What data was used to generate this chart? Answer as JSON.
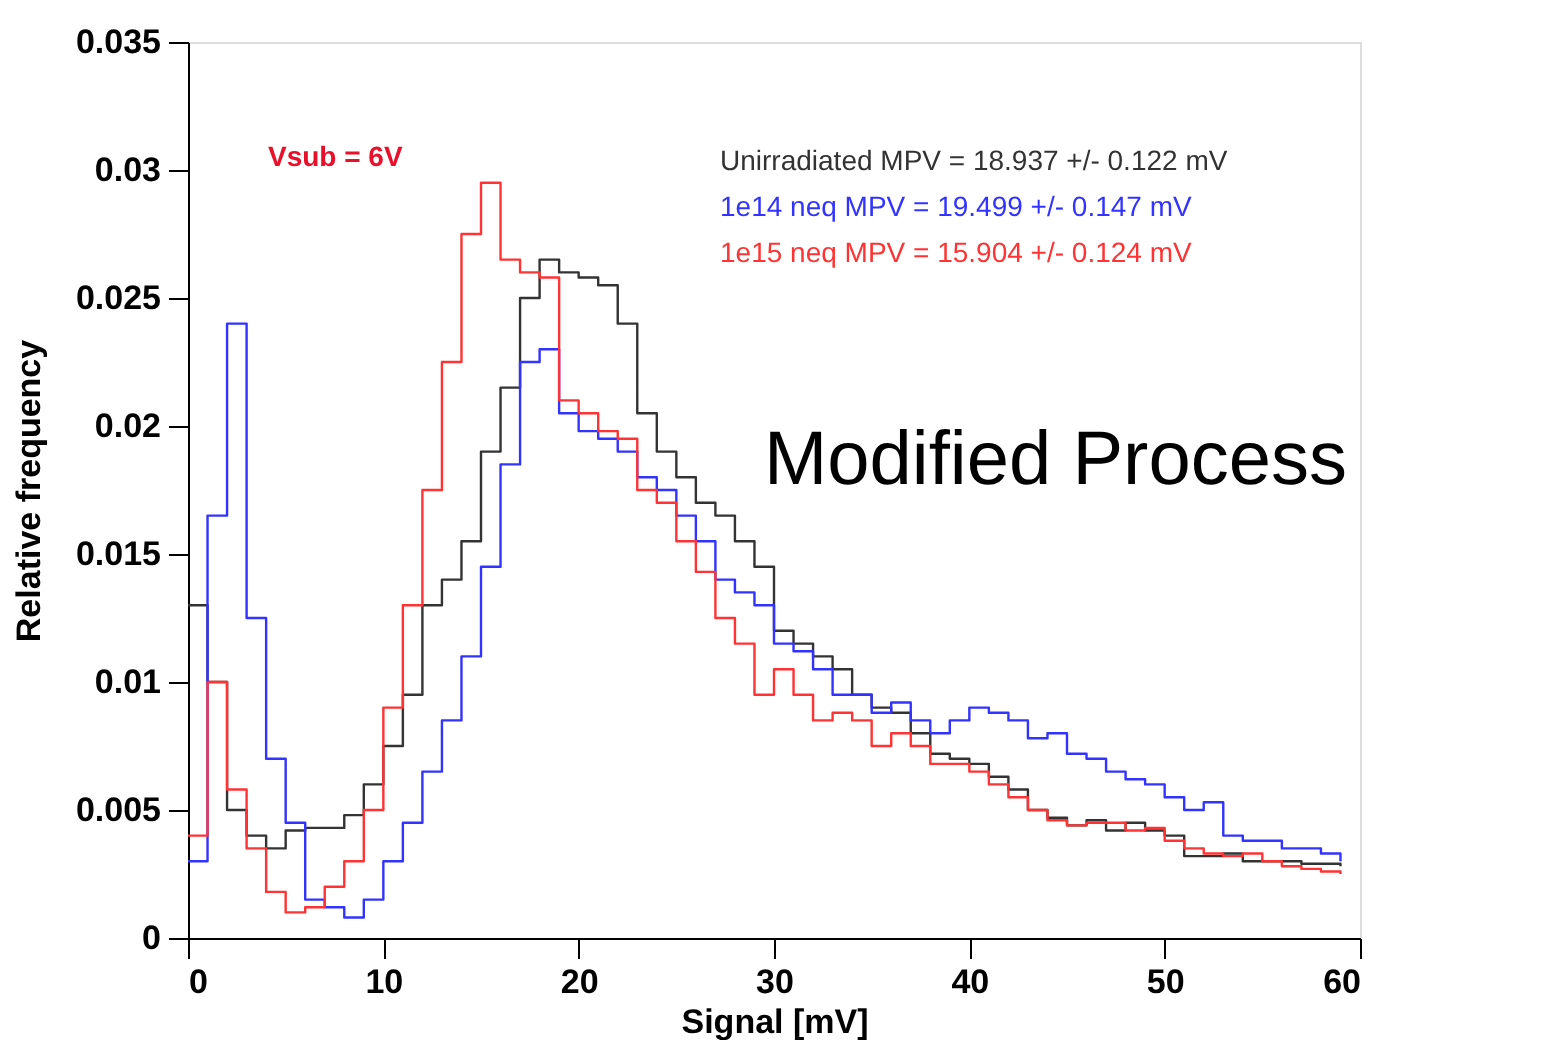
{
  "chart_data": {
    "type": "step",
    "xlabel": "Signal [mV]",
    "ylabel": "Relative frequency",
    "x": [
      0,
      1,
      2,
      3,
      4,
      5,
      6,
      7,
      8,
      9,
      10,
      11,
      12,
      13,
      14,
      15,
      16,
      17,
      18,
      19,
      20,
      21,
      22,
      23,
      24,
      25,
      26,
      27,
      28,
      29,
      30,
      31,
      32,
      33,
      34,
      35,
      36,
      37,
      38,
      39,
      40,
      41,
      42,
      43,
      44,
      45,
      46,
      47,
      48,
      49,
      50,
      51,
      52,
      53,
      54,
      55,
      56,
      57,
      58,
      59
    ],
    "series": [
      {
        "name": "Unirradiated  MPV = 18.937 +/- 0.122 mV",
        "color": "#333333",
        "values": [
          0.013,
          0.01,
          0.005,
          0.004,
          0.0035,
          0.0042,
          0.0043,
          0.0043,
          0.0048,
          0.006,
          0.0075,
          0.0095,
          0.013,
          0.014,
          0.0155,
          0.019,
          0.0215,
          0.025,
          0.0265,
          0.026,
          0.0258,
          0.0255,
          0.024,
          0.0205,
          0.019,
          0.018,
          0.017,
          0.0165,
          0.0155,
          0.0145,
          0.012,
          0.0115,
          0.011,
          0.0105,
          0.0095,
          0.009,
          0.0088,
          0.008,
          0.0072,
          0.007,
          0.0068,
          0.0063,
          0.0058,
          0.005,
          0.0047,
          0.0044,
          0.0046,
          0.0042,
          0.0045,
          0.0042,
          0.004,
          0.0032,
          0.0032,
          0.0033,
          0.003,
          0.003,
          0.003,
          0.0029,
          0.0029,
          0.0028
        ]
      },
      {
        "name": "1e14 neq  MPV = 19.499 +/- 0.147 mV",
        "color": "#3333ff",
        "values": [
          0.003,
          0.0165,
          0.024,
          0.0125,
          0.007,
          0.0045,
          0.0015,
          0.0012,
          0.0008,
          0.0015,
          0.003,
          0.0045,
          0.0065,
          0.0085,
          0.011,
          0.0145,
          0.0185,
          0.0225,
          0.023,
          0.0205,
          0.0198,
          0.0195,
          0.019,
          0.018,
          0.0175,
          0.0165,
          0.0155,
          0.014,
          0.0135,
          0.013,
          0.0115,
          0.0112,
          0.0105,
          0.0095,
          0.0095,
          0.0088,
          0.0092,
          0.0085,
          0.008,
          0.0085,
          0.009,
          0.0088,
          0.0085,
          0.0078,
          0.008,
          0.0072,
          0.007,
          0.0065,
          0.0062,
          0.006,
          0.0055,
          0.005,
          0.0053,
          0.004,
          0.0038,
          0.0038,
          0.0035,
          0.0035,
          0.0033,
          0.003
        ]
      },
      {
        "name": "1e15 neq  MPV = 15.904 +/- 0.124 mV",
        "color": "#ff3333",
        "values": [
          0.004,
          0.01,
          0.0058,
          0.0035,
          0.0018,
          0.001,
          0.0012,
          0.002,
          0.003,
          0.005,
          0.009,
          0.013,
          0.0175,
          0.0225,
          0.0275,
          0.0295,
          0.0265,
          0.026,
          0.0258,
          0.021,
          0.0205,
          0.0198,
          0.0195,
          0.0175,
          0.017,
          0.0155,
          0.0143,
          0.0125,
          0.0115,
          0.0095,
          0.0105,
          0.0095,
          0.0085,
          0.0088,
          0.0085,
          0.0075,
          0.008,
          0.0075,
          0.0068,
          0.0068,
          0.0065,
          0.006,
          0.0055,
          0.005,
          0.0046,
          0.0044,
          0.0045,
          0.0045,
          0.0042,
          0.0043,
          0.0038,
          0.0035,
          0.0033,
          0.0032,
          0.0033,
          0.003,
          0.0028,
          0.0027,
          0.0026,
          0.0025
        ]
      }
    ],
    "xlim": [
      0,
      60
    ],
    "xticks": [
      0,
      10,
      20,
      30,
      40,
      50,
      60
    ],
    "ylim": [
      0,
      0.035
    ],
    "yticks": [
      0,
      0.005,
      0.01,
      0.015,
      0.02,
      0.025,
      0.03,
      0.035
    ],
    "grid": false,
    "legend": "top right",
    "annotations": [
      "Vsub = 6V",
      "Modified Process"
    ]
  }
}
